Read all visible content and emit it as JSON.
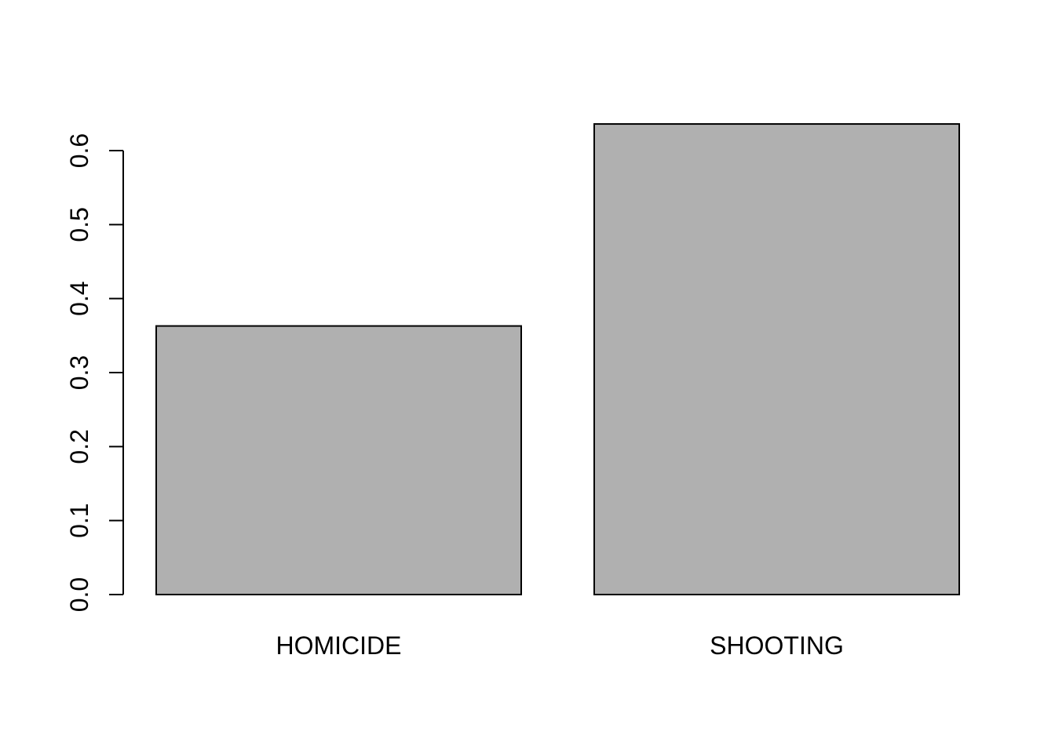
{
  "chart_data": {
    "type": "bar",
    "categories": [
      "HOMICIDE",
      "SHOOTING"
    ],
    "values": [
      0.363,
      0.636
    ],
    "title": "",
    "xlabel": "",
    "ylabel": "",
    "ylim": [
      0,
      0.6
    ],
    "y_ticks": [
      {
        "value": 0.0,
        "label": "0.0"
      },
      {
        "value": 0.1,
        "label": "0.1"
      },
      {
        "value": 0.2,
        "label": "0.2"
      },
      {
        "value": 0.3,
        "label": "0.3"
      },
      {
        "value": 0.4,
        "label": "0.4"
      },
      {
        "value": 0.5,
        "label": "0.5"
      },
      {
        "value": 0.6,
        "label": "0.6"
      }
    ],
    "grid": false,
    "legend": "none",
    "bar_color": "#b0b0b0",
    "border_color": "#000000"
  }
}
